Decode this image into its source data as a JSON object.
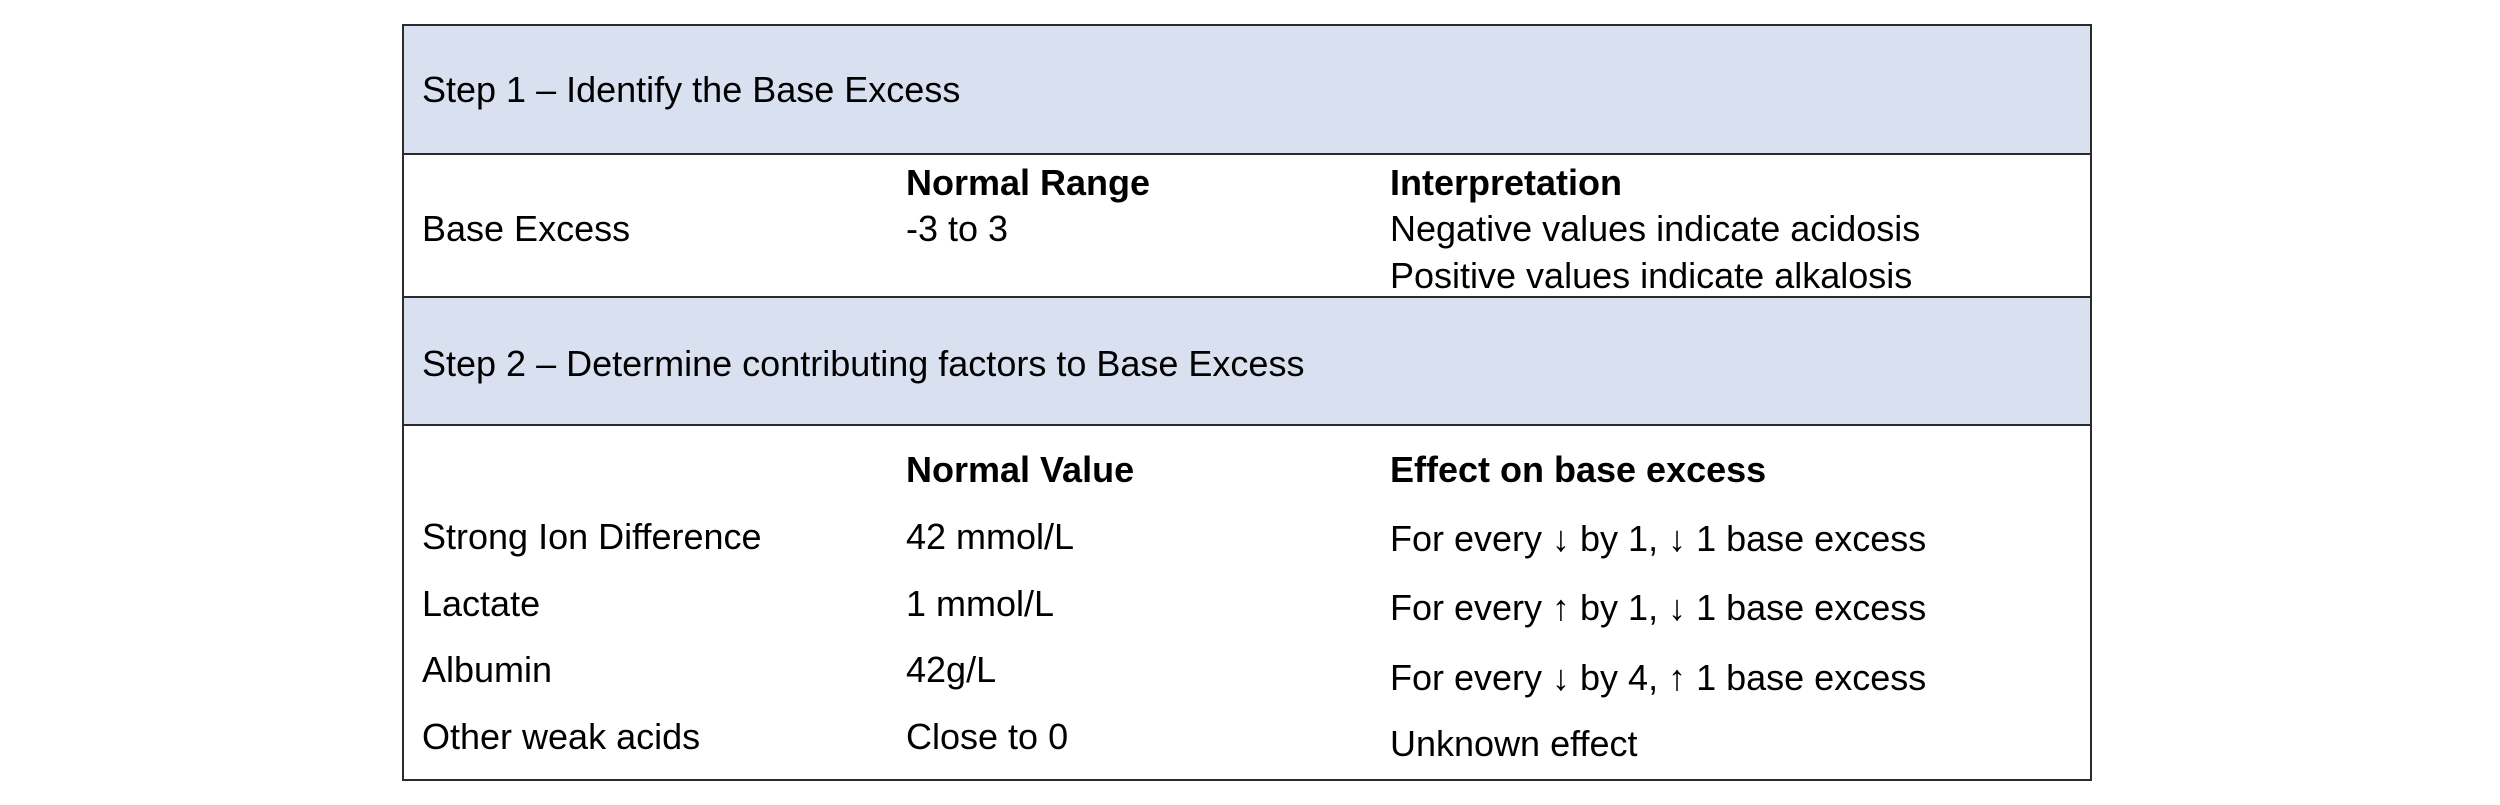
{
  "step1": {
    "title": "Step 1 – Identify the Base Excess",
    "header_normal": "Normal Range",
    "header_interpretation": "Interpretation",
    "row_label": "Base Excess",
    "row_value": "-3 to 3",
    "interpretations": [
      "Negative values indicate acidosis",
      "Positive values indicate alkalosis"
    ]
  },
  "step2": {
    "title": "Step 2 – Determine contributing factors to Base Excess",
    "header_normal": "Normal Value",
    "header_effect": "Effect on base excess",
    "rows": [
      {
        "label": "Strong Ion Difference",
        "value": "42 mmol/L",
        "effect": "For every ↓ by 1, ↓ 1 base excess"
      },
      {
        "label": "Lactate",
        "value": "1 mmol/L",
        "effect": "For every ↑ by 1, ↓ 1 base excess"
      },
      {
        "label": "Albumin",
        "value": "42g/L",
        "effect": "For every ↓ by 4, ↑  1 base excess"
      },
      {
        "label": "Other weak acids",
        "value": "Close to 0",
        "effect": "Unknown effect"
      }
    ]
  },
  "colors": {
    "band": "#d9e1f1",
    "border": "#2b2b2b"
  }
}
